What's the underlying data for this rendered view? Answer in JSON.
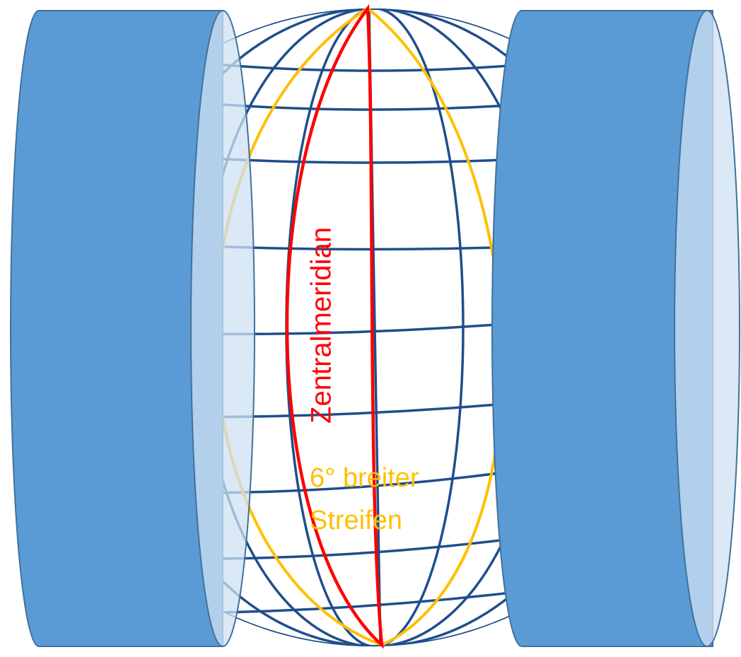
{
  "labels": {
    "central_meridian": "Zentralmeridian",
    "strip": [
      "6° breiter",
      "Streifen"
    ]
  }
}
